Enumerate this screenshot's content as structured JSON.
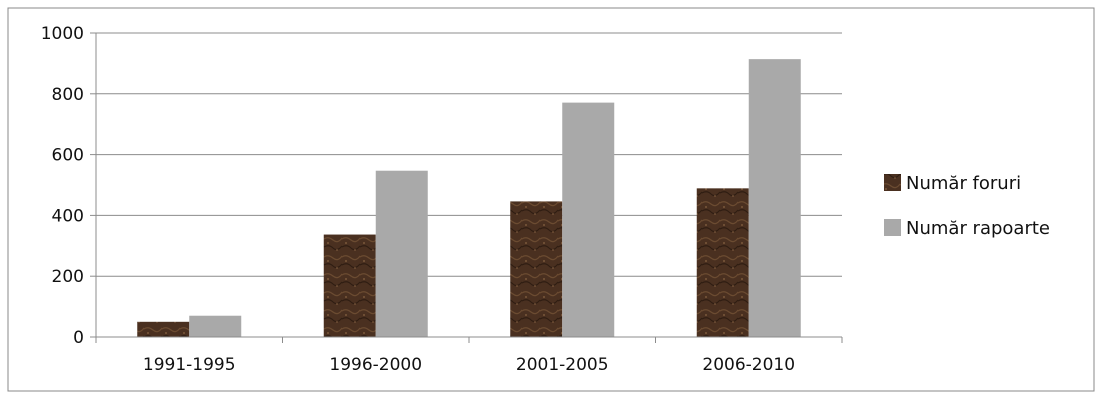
{
  "chart_data": {
    "type": "bar",
    "title": "",
    "xlabel": "",
    "ylabel": "",
    "categories": [
      "1991-1995",
      "1996-2000",
      "2001-2005",
      "2006-2010"
    ],
    "series": [
      {
        "name": "Număr foruri",
        "values": [
          50,
          337,
          446,
          489
        ],
        "color": "#4a3020"
      },
      {
        "name": "Număr rapoarte",
        "values": [
          70,
          547,
          771,
          914
        ],
        "color": "#a9a9a9"
      }
    ],
    "ylim": [
      0,
      1000
    ],
    "yticks": [
      0,
      200,
      400,
      600,
      800,
      1000
    ],
    "grid": true,
    "legend_position": "right"
  }
}
